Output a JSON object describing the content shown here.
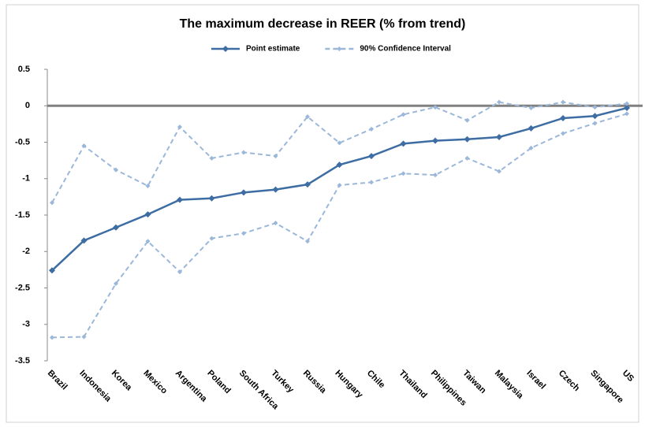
{
  "chart_data": {
    "type": "line",
    "title": "The maximum decrease in REER (% from trend)",
    "categories": [
      "Brazil",
      "Indonesia",
      "Korea",
      "Mexico",
      "Argentina",
      "Poland",
      "South Africa",
      "Turkey",
      "Russia",
      "Hungary",
      "Chile",
      "Thailand",
      "Philippines",
      "Taiwan",
      "Malaysia",
      "Israel",
      "Czech",
      "Singapore",
      "US"
    ],
    "series": [
      {
        "name": "Point estimate",
        "color": "#3d6da3",
        "dashed": false,
        "values": [
          -2.26,
          -1.85,
          -1.67,
          -1.49,
          -1.29,
          -1.27,
          -1.19,
          -1.15,
          -1.08,
          -0.81,
          -0.69,
          -0.52,
          -0.48,
          -0.46,
          -0.43,
          -0.31,
          -0.17,
          -0.14,
          -0.03
        ]
      },
      {
        "name": "90% Confidence Interval",
        "color": "#9bb7d9",
        "dashed": true,
        "values": [
          -1.33,
          -0.55,
          -0.88,
          -1.1,
          -0.29,
          -0.72,
          -0.64,
          -0.69,
          -0.15,
          -0.51,
          -0.32,
          -0.12,
          -0.02,
          -0.2,
          0.05,
          -0.03,
          0.05,
          -0.02,
          0.03
        ]
      },
      {
        "color": "#9bb7d9",
        "dashed": true,
        "values": [
          -3.18,
          -3.17,
          -2.44,
          -1.86,
          -2.28,
          -1.82,
          -1.75,
          -1.61,
          -1.86,
          -1.09,
          -1.05,
          -0.93,
          -0.95,
          -0.72,
          -0.9,
          -0.58,
          -0.38,
          -0.24,
          -0.11
        ]
      }
    ],
    "ylim": [
      -3.5,
      0.5
    ],
    "yticks": [
      -3.5,
      -3,
      -2.5,
      -2,
      -1.5,
      -1,
      -0.5,
      0,
      0.5
    ],
    "legend": "top"
  }
}
